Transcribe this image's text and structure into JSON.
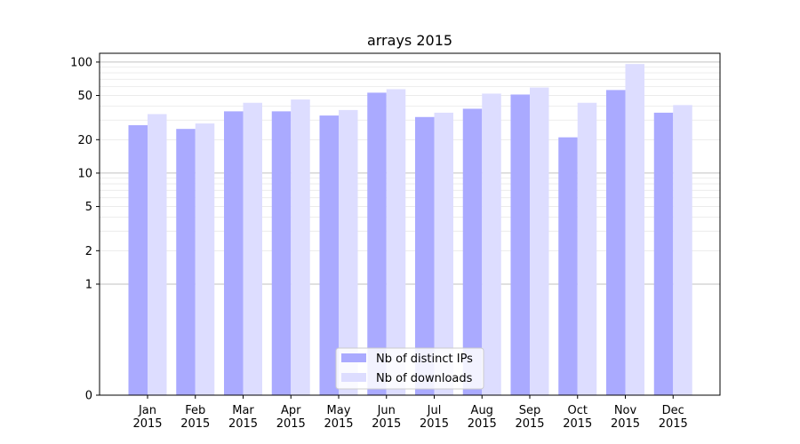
{
  "chart_data": {
    "type": "bar",
    "title": "arrays 2015",
    "xlabel": "",
    "ylabel": "",
    "yscale": "symlog",
    "ylim": [
      0,
      120
    ],
    "ytick_values": [
      0,
      1,
      2,
      5,
      10,
      20,
      50,
      100
    ],
    "ytick_labels": [
      "0",
      "1",
      "2",
      "5",
      "10",
      "20",
      "50",
      "100"
    ],
    "categories": [
      "Jan 2015",
      "Feb 2015",
      "Mar 2015",
      "Apr 2015",
      "May 2015",
      "Jun 2015",
      "Jul 2015",
      "Aug 2015",
      "Sep 2015",
      "Oct 2015",
      "Nov 2015",
      "Dec 2015"
    ],
    "category_lines": [
      [
        "Jan",
        "2015"
      ],
      [
        "Feb",
        "2015"
      ],
      [
        "Mar",
        "2015"
      ],
      [
        "Apr",
        "2015"
      ],
      [
        "May",
        "2015"
      ],
      [
        "Jun",
        "2015"
      ],
      [
        "Jul",
        "2015"
      ],
      [
        "Aug",
        "2015"
      ],
      [
        "Sep",
        "2015"
      ],
      [
        "Oct",
        "2015"
      ],
      [
        "Nov",
        "2015"
      ],
      [
        "Dec",
        "2015"
      ]
    ],
    "series": [
      {
        "name": "Nb of distinct IPs",
        "color": "#aaaaff",
        "values": [
          27,
          25,
          36,
          36,
          33,
          53,
          32,
          38,
          51,
          21,
          56,
          35
        ]
      },
      {
        "name": "Nb of downloads",
        "color": "#ddddff",
        "values": [
          34,
          28,
          43,
          46,
          37,
          57,
          35,
          52,
          59,
          43,
          96,
          41
        ]
      }
    ],
    "grid": true,
    "legend_position": "lower-center"
  }
}
